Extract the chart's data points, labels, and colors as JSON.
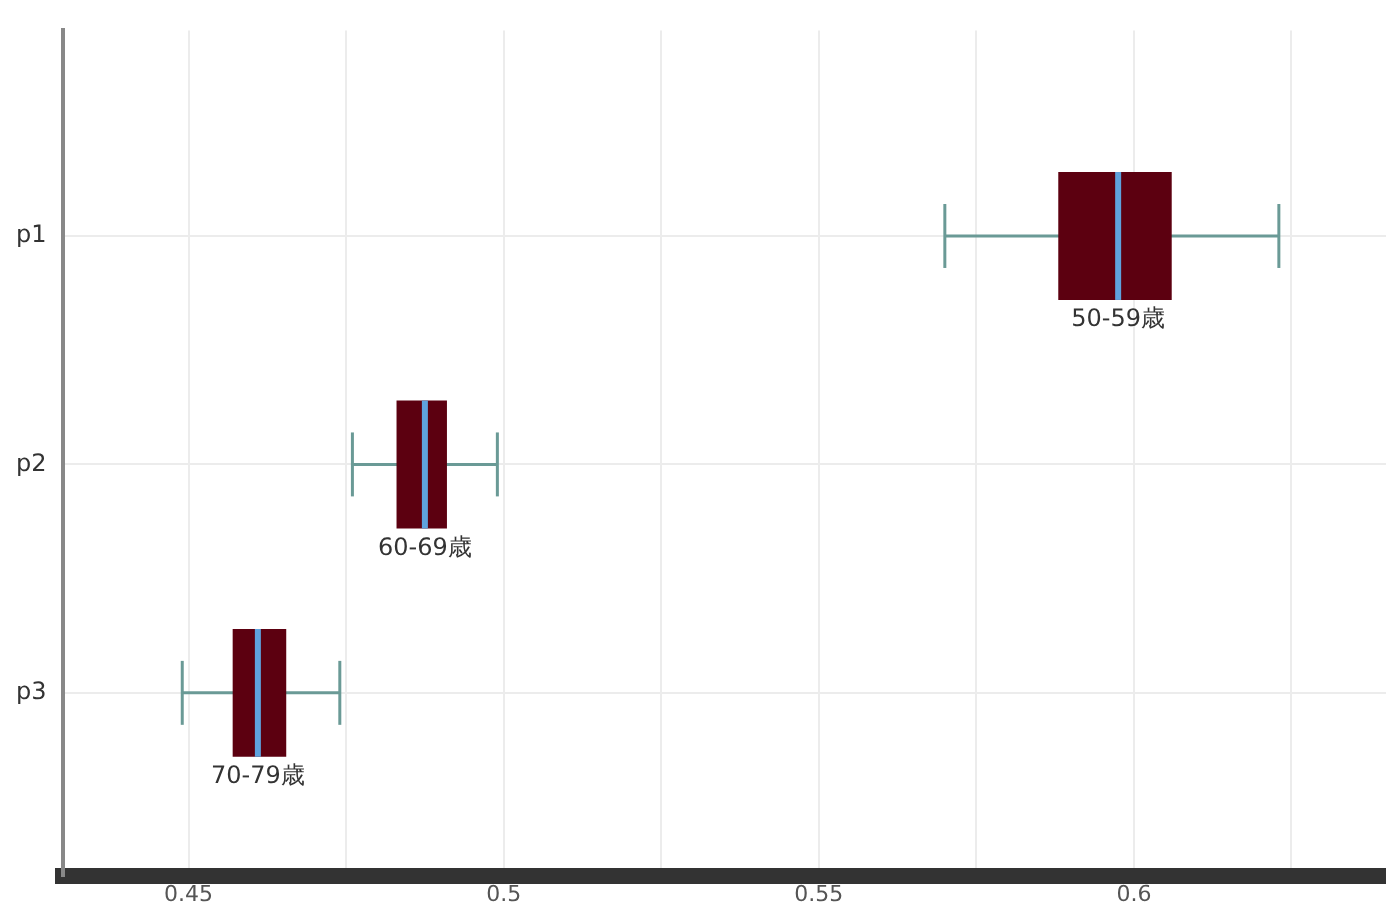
{
  "chart_data": {
    "type": "box",
    "orientation": "horizontal",
    "categories": [
      "p1",
      "p2",
      "p3"
    ],
    "color": "#5c0010",
    "boxes": [
      {
        "low": 0.57,
        "q1": 0.588,
        "median": 0.5975,
        "q3": 0.606,
        "high": 0.623
      },
      {
        "low": 0.476,
        "q1": 0.483,
        "median": 0.4875,
        "q3": 0.491,
        "high": 0.499
      },
      {
        "low": 0.449,
        "q1": 0.457,
        "median": 0.461,
        "q3": 0.4655,
        "high": 0.474
      }
    ],
    "xlim": [
      0.43,
      0.64
    ],
    "xticks": [
      0.45,
      {
        "value": 0.475,
        "label": null
      },
      0.5,
      {
        "value": 0.525,
        "label": null
      },
      0.55,
      {
        "value": 0.575,
        "label": null
      },
      0.6,
      {
        "value": 0.625,
        "label": null
      }
    ],
    "grid": true,
    "annotations": [
      "50-59歳",
      "60-69歳",
      "70-79歳"
    ]
  }
}
